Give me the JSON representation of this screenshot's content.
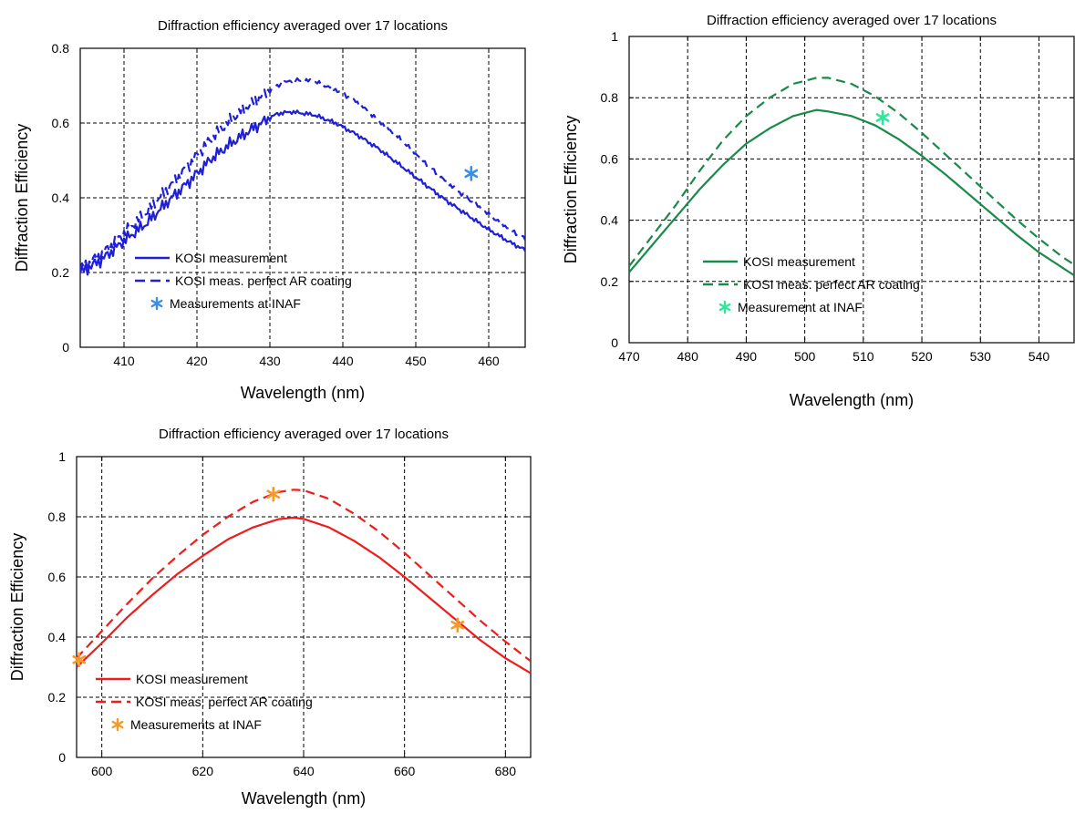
{
  "chart_data": [
    {
      "type": "line",
      "title": "Diffraction efficiency averaged over 17 locations",
      "xlabel": "Wavelength (nm)",
      "ylabel": "Diffraction Efficiency",
      "xlim": [
        404,
        465
      ],
      "ylim": [
        0,
        0.8
      ],
      "x_ticks": [
        410,
        420,
        430,
        440,
        450,
        460
      ],
      "x_tick_labels": [
        "410",
        "420",
        "430",
        "440",
        "450",
        "460"
      ],
      "y_ticks": [
        0,
        0.2,
        0.4,
        0.6,
        0.8
      ],
      "y_tick_labels": [
        "0",
        "0.2",
        "0.4",
        "0.6",
        "0.8"
      ],
      "grid": true,
      "legend_position": "lower-left",
      "series": [
        {
          "name": "KOSI measurement",
          "style": "solid",
          "color": "#1f1fd6",
          "noisy": true,
          "x": [
            404,
            407,
            410,
            413,
            416,
            419,
            422,
            425,
            428,
            431,
            433,
            436,
            439,
            442,
            445,
            448,
            451,
            454,
            457,
            460,
            463,
            465
          ],
          "y": [
            0.2,
            0.235,
            0.285,
            0.33,
            0.39,
            0.445,
            0.505,
            0.55,
            0.59,
            0.625,
            0.63,
            0.622,
            0.6,
            0.568,
            0.53,
            0.485,
            0.44,
            0.395,
            0.355,
            0.315,
            0.28,
            0.26
          ]
        },
        {
          "name": "KOSI meas. perfect AR coating",
          "style": "dashed",
          "color": "#1f1fd6",
          "noisy": true,
          "x": [
            404,
            407,
            410,
            413,
            416,
            419,
            422,
            425,
            428,
            431,
            433,
            436,
            439,
            442,
            445,
            448,
            451,
            454,
            457,
            460,
            463,
            465
          ],
          "y": [
            0.21,
            0.25,
            0.305,
            0.36,
            0.425,
            0.49,
            0.56,
            0.615,
            0.66,
            0.7,
            0.715,
            0.712,
            0.69,
            0.655,
            0.605,
            0.555,
            0.5,
            0.445,
            0.4,
            0.355,
            0.315,
            0.29
          ]
        },
        {
          "name": "Measurements at INAF",
          "style": "marker",
          "marker": "*",
          "color": "#3a8ee6",
          "x": [
            457.6
          ],
          "y": [
            0.465
          ]
        }
      ]
    },
    {
      "type": "line",
      "title": "Diffraction efficiency averaged over 17 locations",
      "xlabel": "Wavelength (nm)",
      "ylabel": "Diffraction Efficiency",
      "xlim": [
        470,
        546
      ],
      "ylim": [
        0,
        1
      ],
      "x_ticks": [
        470,
        480,
        490,
        500,
        510,
        520,
        530,
        540
      ],
      "x_tick_labels": [
        "470",
        "480",
        "490",
        "500",
        "510",
        "520",
        "530",
        "540"
      ],
      "y_ticks": [
        0,
        0.2,
        0.4,
        0.6,
        0.8,
        1
      ],
      "y_tick_labels": [
        "0",
        "0.2",
        "0.4",
        "0.6",
        "0.8",
        "1"
      ],
      "grid": true,
      "legend_position": "lower-left",
      "series": [
        {
          "name": "KOSI measurement",
          "style": "solid",
          "color": "#1a8a4a",
          "noisy": false,
          "x": [
            470,
            474,
            478,
            482,
            486,
            490,
            494,
            498,
            502,
            504,
            508,
            512,
            516,
            520,
            524,
            528,
            532,
            536,
            540,
            544,
            546
          ],
          "y": [
            0.23,
            0.32,
            0.41,
            0.5,
            0.58,
            0.65,
            0.7,
            0.74,
            0.76,
            0.755,
            0.74,
            0.71,
            0.665,
            0.61,
            0.55,
            0.485,
            0.42,
            0.355,
            0.295,
            0.245,
            0.22
          ]
        },
        {
          "name": "KOSI meas. perfect AR coating",
          "style": "dashed",
          "color": "#1a8a4a",
          "noisy": false,
          "x": [
            470,
            474,
            478,
            482,
            486,
            490,
            494,
            498,
            502,
            504,
            508,
            512,
            516,
            520,
            524,
            528,
            532,
            536,
            540,
            544,
            546
          ],
          "y": [
            0.25,
            0.35,
            0.45,
            0.56,
            0.66,
            0.74,
            0.8,
            0.845,
            0.865,
            0.865,
            0.845,
            0.805,
            0.75,
            0.685,
            0.615,
            0.545,
            0.475,
            0.405,
            0.34,
            0.28,
            0.255
          ]
        },
        {
          "name": "Measurement at INAF",
          "style": "marker",
          "marker": "*",
          "color": "#2ee89a",
          "x": [
            513.3
          ],
          "y": [
            0.735
          ]
        }
      ]
    },
    {
      "type": "line",
      "title": "Diffraction efficiency averaged over 17 locations",
      "xlabel": "Wavelength (nm)",
      "ylabel": "Diffraction Efficiency",
      "xlim": [
        595,
        685
      ],
      "ylim": [
        0,
        1
      ],
      "x_ticks": [
        600,
        620,
        640,
        660,
        680
      ],
      "x_tick_labels": [
        "600",
        "620",
        "640",
        "660",
        "680"
      ],
      "y_ticks": [
        0,
        0.2,
        0.4,
        0.6,
        0.8,
        1
      ],
      "y_tick_labels": [
        "0",
        "0.2",
        "0.4",
        "0.6",
        "0.8",
        "1"
      ],
      "grid": true,
      "legend_position": "lower-left",
      "series": [
        {
          "name": "KOSI measurement",
          "style": "solid",
          "color": "#ee1c1c",
          "noisy": false,
          "x": [
            595,
            600,
            605,
            610,
            615,
            620,
            625,
            630,
            635,
            638,
            640,
            645,
            650,
            655,
            660,
            665,
            670,
            675,
            680,
            685
          ],
          "y": [
            0.3,
            0.38,
            0.465,
            0.54,
            0.61,
            0.67,
            0.725,
            0.765,
            0.792,
            0.797,
            0.793,
            0.765,
            0.72,
            0.665,
            0.6,
            0.53,
            0.46,
            0.39,
            0.33,
            0.28
          ]
        },
        {
          "name": "KOSI meas. perfect AR coating",
          "style": "dashed",
          "color": "#ee1c1c",
          "noisy": false,
          "x": [
            595,
            600,
            605,
            610,
            615,
            620,
            625,
            630,
            635,
            638,
            640,
            645,
            650,
            655,
            660,
            665,
            670,
            675,
            680,
            685
          ],
          "y": [
            0.33,
            0.42,
            0.51,
            0.595,
            0.67,
            0.74,
            0.8,
            0.85,
            0.882,
            0.89,
            0.888,
            0.86,
            0.81,
            0.75,
            0.68,
            0.605,
            0.53,
            0.455,
            0.385,
            0.32
          ]
        },
        {
          "name": "Measurements at INAF",
          "style": "marker",
          "marker": "*",
          "color": "#f59a2a",
          "x": [
            595.5,
            634,
            670.5
          ],
          "y": [
            0.325,
            0.875,
            0.44
          ]
        }
      ]
    }
  ]
}
